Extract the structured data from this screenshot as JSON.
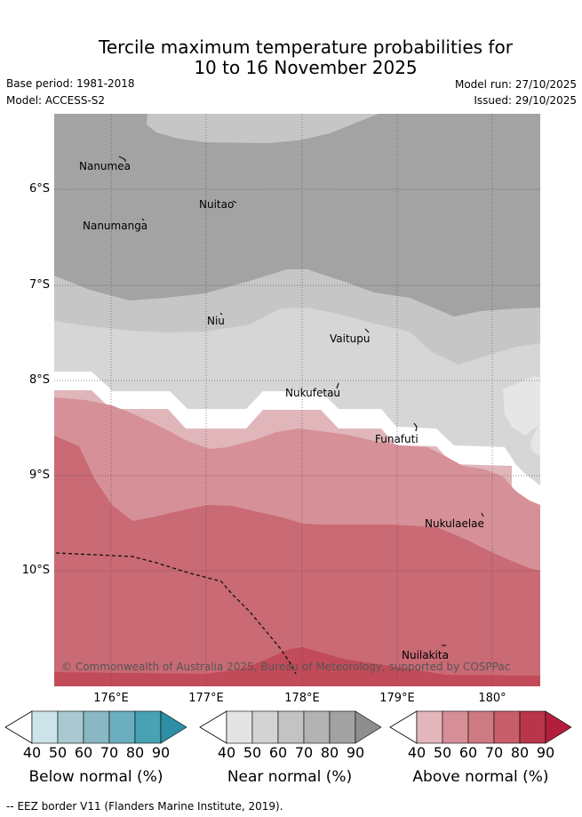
{
  "title_line1": "Tercile maximum temperature probabilities for",
  "title_line2": "10 to 16 November 2025",
  "base_period": "Base period: 1981-2018",
  "model": "Model: ACCESS-S2",
  "model_run": "Model run: 27/10/2025",
  "issued": "Issued: 29/10/2025",
  "lat_labels": [
    "6°S",
    "7°S",
    "8°S",
    "9°S",
    "10°S"
  ],
  "lon_labels": [
    "176°E",
    "177°E",
    "178°E",
    "179°E",
    "180°"
  ],
  "places": [
    {
      "name": "Nanumea"
    },
    {
      "name": "Nuitao"
    },
    {
      "name": "Nanumanga"
    },
    {
      "name": "Niu"
    },
    {
      "name": "Vaitupu"
    },
    {
      "name": "Nukufetau"
    },
    {
      "name": "Funafuti"
    },
    {
      "name": "Nukulaelae"
    },
    {
      "name": "Nuilakita"
    }
  ],
  "copyright": "© Commonwealth of Australia 2025, Bureau of Meteorology, supported by COSPPac",
  "colorbars": [
    {
      "title": "Below normal (%)",
      "ticks": [
        "40",
        "50",
        "60",
        "70",
        "80",
        "90"
      ],
      "colors": [
        "#cde3ea",
        "#a9c8cf",
        "#8ab7c4",
        "#6aaebf",
        "#47a2b3",
        "#2d8fa5"
      ]
    },
    {
      "title": "Near normal (%)",
      "ticks": [
        "40",
        "50",
        "60",
        "70",
        "80",
        "90"
      ],
      "colors": [
        "#e4e4e4",
        "#d3d3d3",
        "#c3c3c3",
        "#b3b3b3",
        "#a2a2a2",
        "#8e8e8e"
      ]
    },
    {
      "title": "Above normal (%)",
      "ticks": [
        "40",
        "50",
        "60",
        "70",
        "80",
        "90"
      ],
      "colors": [
        "#e2b6bb",
        "#d68f97",
        "#cd7a82",
        "#c85e6a",
        "#b9354b",
        "#b31e3d"
      ]
    }
  ],
  "footer": "-- EEZ border V11 (Flanders Marine Institute, 2019).",
  "map_colors": {
    "near_light": "#e6e6e6",
    "near_40": "#d6d6d6",
    "near_50": "#c6c6c6",
    "near_60": "#a3a3a3",
    "above_40": "#e0b6bb",
    "above_50": "#d69098",
    "above_60": "#c96a74",
    "above_70": "#c24b59"
  },
  "chart_data": {
    "type": "map",
    "lat_range": [
      "5.2°S",
      "11.2°S"
    ],
    "lon_range": [
      "175.4°E",
      "180.5°E"
    ],
    "category_legend": [
      "Below normal",
      "Near normal",
      "Above normal"
    ]
  }
}
